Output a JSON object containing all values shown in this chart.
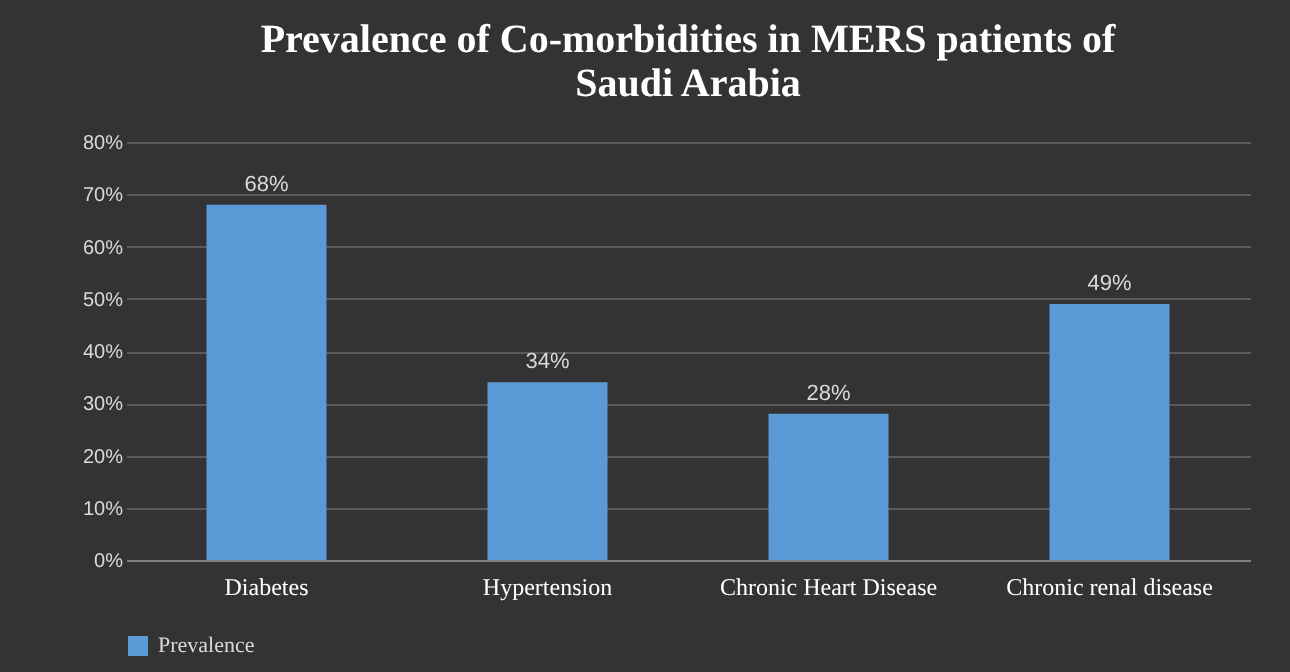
{
  "chart_data": {
    "type": "bar",
    "title": "Prevalence of Co-morbidities in MERS patients of Saudi Arabia",
    "categories": [
      "Diabetes",
      "Hypertension",
      "Chronic Heart Disease",
      "Chronic renal disease"
    ],
    "series": [
      {
        "name": "Prevalence",
        "color": "#5b9bd5",
        "values": [
          68,
          34,
          28,
          49
        ],
        "value_labels": [
          "68%",
          "34%",
          "28%",
          "49%"
        ]
      }
    ],
    "ylim": [
      0,
      80
    ],
    "yticks": [
      {
        "value": 0,
        "label": "0%"
      },
      {
        "value": 10,
        "label": "10%"
      },
      {
        "value": 20,
        "label": "20%"
      },
      {
        "value": 30,
        "label": "30%"
      },
      {
        "value": 40,
        "label": "40%"
      },
      {
        "value": 50,
        "label": "50%"
      },
      {
        "value": 60,
        "label": "60%"
      },
      {
        "value": 70,
        "label": "70%"
      },
      {
        "value": 80,
        "label": "80%"
      }
    ],
    "grid": "y",
    "legend": "bottom"
  }
}
